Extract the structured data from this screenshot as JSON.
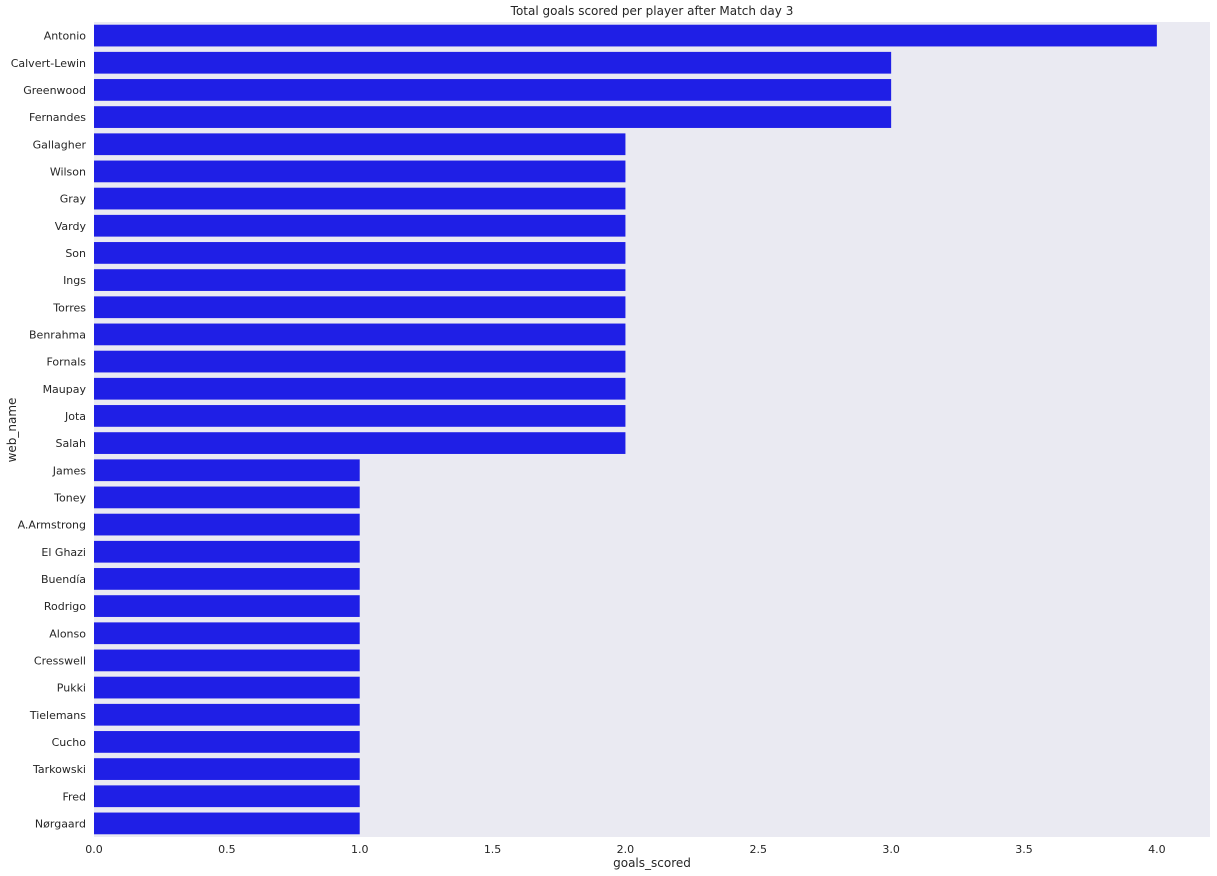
{
  "chart_data": {
    "type": "bar",
    "orientation": "horizontal",
    "title": "Total goals scored per player after Match day 3",
    "xlabel": "goals_scored",
    "ylabel": "web_name",
    "xlim": [
      0,
      4.2
    ],
    "xticks": [
      "0.0",
      "0.5",
      "1.0",
      "1.5",
      "2.0",
      "2.5",
      "3.0",
      "3.5",
      "4.0"
    ],
    "grid": false,
    "bar_color": "#1f1fe6",
    "background_color": "#eaeaf2",
    "categories": [
      "Antonio",
      "Calvert-Lewin",
      "Greenwood",
      "Fernandes",
      "Gallagher",
      "Wilson",
      "Gray",
      "Vardy",
      "Son",
      "Ings",
      "Torres",
      "Benrahma",
      "Fornals",
      "Maupay",
      "Jota",
      "Salah",
      "James",
      "Toney",
      "A.Armstrong",
      "El Ghazi",
      "Buendía",
      "Rodrigo",
      "Alonso",
      "Cresswell",
      "Pukki",
      "Tielemans",
      "Cucho",
      "Tarkowski",
      "Fred",
      "Nørgaard"
    ],
    "values": [
      4,
      3,
      3,
      3,
      2,
      2,
      2,
      2,
      2,
      2,
      2,
      2,
      2,
      2,
      2,
      2,
      1,
      1,
      1,
      1,
      1,
      1,
      1,
      1,
      1,
      1,
      1,
      1,
      1,
      1
    ]
  }
}
